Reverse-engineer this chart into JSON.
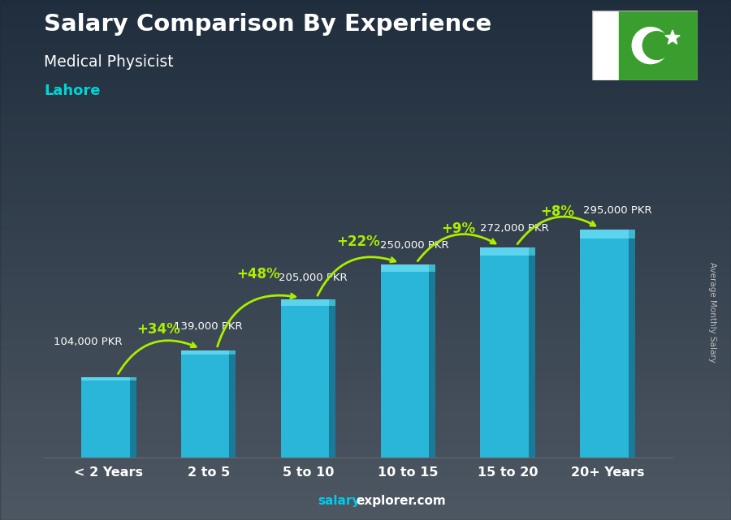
{
  "title": "Salary Comparison By Experience",
  "subtitle": "Medical Physicist",
  "city": "Lahore",
  "categories": [
    "< 2 Years",
    "2 to 5",
    "5 to 10",
    "10 to 15",
    "15 to 20",
    "20+ Years"
  ],
  "values": [
    104000,
    139000,
    205000,
    250000,
    272000,
    295000
  ],
  "salary_labels": [
    "104,000 PKR",
    "139,000 PKR",
    "205,000 PKR",
    "250,000 PKR",
    "272,000 PKR",
    "295,000 PKR"
  ],
  "pct_labels": [
    null,
    "+34%",
    "+48%",
    "+22%",
    "+9%",
    "+8%"
  ],
  "bar_color_main": "#29b6d8",
  "bar_color_right": "#1a7a9a",
  "bar_color_top": "#5dd4ee",
  "title_color": "#ffffff",
  "subtitle_color": "#ffffff",
  "city_color": "#00d4d4",
  "pct_color": "#aaee00",
  "salary_label_color": "#ffffff",
  "xlabel_color": "#ffffff",
  "bg_color_top": "#6a7a88",
  "bg_color_bottom": "#2a3a48",
  "footer_salary_color": "#00ccee",
  "footer_explorer_color": "#ffffff",
  "ylabel_text": "Average Monthly Salary",
  "ylim": [
    0,
    370000
  ],
  "bar_width": 0.55
}
